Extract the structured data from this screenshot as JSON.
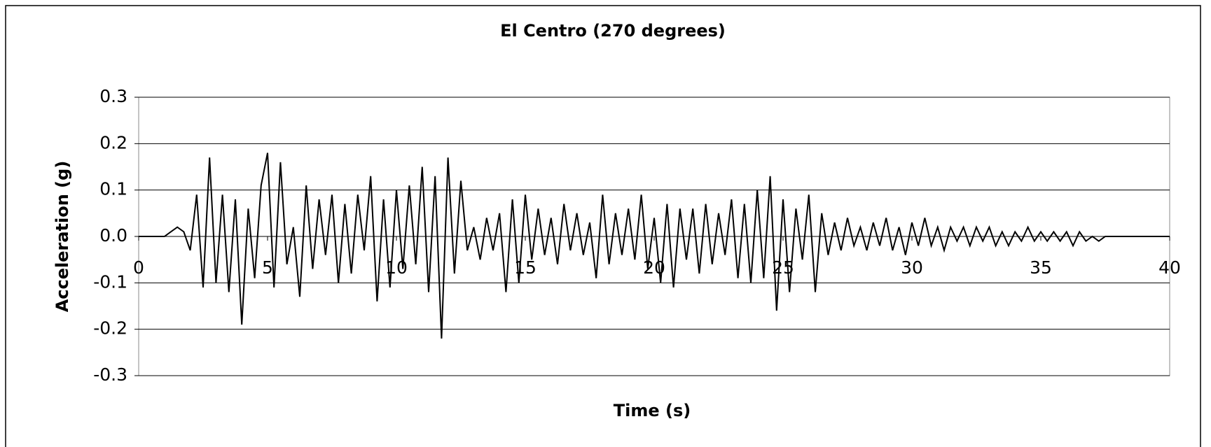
{
  "chart_data": {
    "type": "line",
    "title": "El Centro (270 degrees)",
    "x_label": "Time (s)",
    "y_label": "Acceleration (g)",
    "xlim": [
      0,
      40
    ],
    "xticks": [
      0,
      5,
      10,
      15,
      20,
      25,
      30,
      35,
      40
    ],
    "ylim": [
      -0.3,
      0.3
    ],
    "yticks": [
      0.3,
      0.2,
      0.1,
      {
        "value": 0,
        "label": "0.0"
      },
      -0.1,
      -0.2,
      -0.3
    ],
    "grid": true,
    "x": [
      0,
      0.25,
      0.5,
      0.75,
      1,
      1.25,
      1.5,
      1.75,
      2,
      2.25,
      2.5,
      2.75,
      3,
      3.25,
      3.5,
      3.75,
      4,
      4.25,
      4.5,
      4.75,
      5,
      5.25,
      5.5,
      5.75,
      6,
      6.25,
      6.5,
      6.75,
      7,
      7.25,
      7.5,
      7.75,
      8,
      8.25,
      8.5,
      8.75,
      9,
      9.25,
      9.5,
      9.75,
      10,
      10.25,
      10.5,
      10.75,
      11,
      11.25,
      11.5,
      11.75,
      12,
      12.25,
      12.5,
      12.75,
      13,
      13.25,
      13.5,
      13.75,
      14,
      14.25,
      14.5,
      14.75,
      15,
      15.25,
      15.5,
      15.75,
      16,
      16.25,
      16.5,
      16.75,
      17,
      17.25,
      17.5,
      17.75,
      18,
      18.25,
      18.5,
      18.75,
      19,
      19.25,
      19.5,
      19.75,
      20,
      20.25,
      20.5,
      20.75,
      21,
      21.25,
      21.5,
      21.75,
      22,
      22.25,
      22.5,
      22.75,
      23,
      23.25,
      23.5,
      23.75,
      24,
      24.25,
      24.5,
      24.75,
      25,
      25.25,
      25.5,
      25.75,
      26,
      26.25,
      26.5,
      26.75,
      27,
      27.25,
      27.5,
      27.75,
      28,
      28.25,
      28.5,
      28.75,
      29,
      29.25,
      29.5,
      29.75,
      30,
      30.25,
      30.5,
      30.75,
      31,
      31.25,
      31.5,
      31.75,
      32,
      32.25,
      32.5,
      32.75,
      33,
      33.25,
      33.5,
      33.75,
      34,
      34.25,
      34.5,
      34.75,
      35,
      35.25,
      35.5,
      35.75,
      36,
      36.25,
      36.5,
      36.75,
      37,
      37.25,
      37.5,
      37.75,
      38,
      38.25,
      38.5,
      38.75,
      39,
      39.25,
      39.5,
      39.75,
      40
    ],
    "series": [
      {
        "color": "#000000",
        "values": [
          0,
          0,
          0,
          0,
          0,
          0.01,
          0.02,
          0.01,
          -0.03,
          0.09,
          -0.11,
          0.17,
          -0.1,
          0.09,
          -0.12,
          0.08,
          -0.19,
          0.06,
          -0.09,
          0.11,
          0.18,
          -0.11,
          0.16,
          -0.06,
          0.02,
          -0.13,
          0.11,
          -0.07,
          0.08,
          -0.04,
          0.09,
          -0.1,
          0.07,
          -0.08,
          0.09,
          -0.03,
          0.13,
          -0.14,
          0.08,
          -0.11,
          0.1,
          -0.07,
          0.11,
          -0.06,
          0.15,
          -0.12,
          0.13,
          -0.22,
          0.17,
          -0.08,
          0.12,
          -0.03,
          0.02,
          -0.05,
          0.04,
          -0.03,
          0.05,
          -0.12,
          0.08,
          -0.1,
          0.09,
          -0.05,
          0.06,
          -0.04,
          0.04,
          -0.06,
          0.07,
          -0.03,
          0.05,
          -0.04,
          0.03,
          -0.09,
          0.09,
          -0.06,
          0.05,
          -0.04,
          0.06,
          -0.05,
          0.09,
          -0.07,
          0.04,
          -0.1,
          0.07,
          -0.11,
          0.06,
          -0.05,
          0.06,
          -0.08,
          0.07,
          -0.06,
          0.05,
          -0.04,
          0.08,
          -0.09,
          0.07,
          -0.1,
          0.1,
          -0.09,
          0.13,
          -0.16,
          0.08,
          -0.12,
          0.06,
          -0.05,
          0.09,
          -0.12,
          0.05,
          -0.04,
          0.03,
          -0.03,
          0.04,
          -0.02,
          0.02,
          -0.03,
          0.03,
          -0.02,
          0.04,
          -0.03,
          0.02,
          -0.04,
          0.03,
          -0.02,
          0.04,
          -0.02,
          0.02,
          -0.03,
          0.02,
          -0.01,
          0.02,
          -0.02,
          0.02,
          -0.01,
          0.02,
          -0.02,
          0.01,
          -0.02,
          0.01,
          -0.01,
          0.02,
          -0.01,
          0.01,
          -0.01,
          0.01,
          -0.01,
          0.01,
          -0.02,
          0.01,
          -0.01,
          0,
          -0.01,
          0,
          0,
          0,
          0,
          0,
          0,
          0,
          0,
          0,
          0,
          0
        ]
      }
    ]
  }
}
